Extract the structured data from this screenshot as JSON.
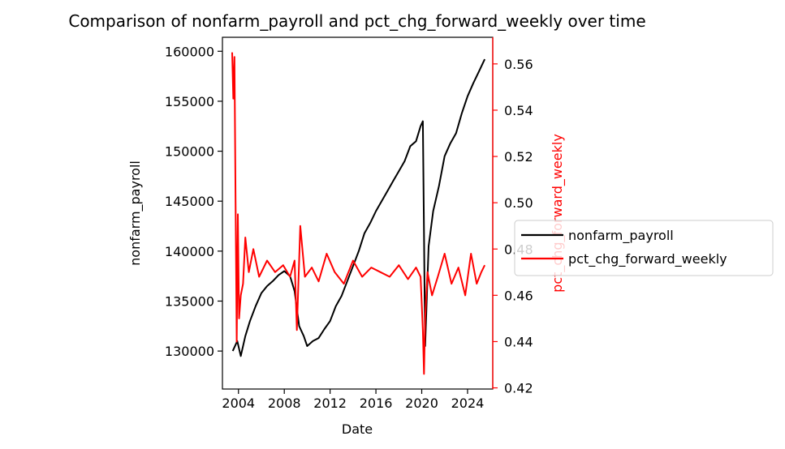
{
  "chart_data": {
    "type": "line",
    "title": "Comparison of nonfarm_payroll and pct_chg_forward_weekly over time",
    "xlabel": "Date",
    "x_tick_labels": [
      "2004",
      "2008",
      "2012",
      "2016",
      "2020",
      "2024"
    ],
    "xlim": [
      2002.6,
      2026.2
    ],
    "y_left": {
      "label": "nonfarm_payroll",
      "ticks": [
        130000,
        135000,
        140000,
        145000,
        150000,
        155000,
        160000
      ],
      "tick_labels": [
        "130000",
        "135000",
        "140000",
        "145000",
        "150000",
        "155000",
        "160000"
      ],
      "lim": [
        126200,
        161400
      ],
      "color": "#000000"
    },
    "y_right": {
      "label": "pct_chg_forward_weekly",
      "ticks": [
        0.42,
        0.44,
        0.46,
        0.48,
        0.5,
        0.52,
        0.54,
        0.56
      ],
      "tick_labels": [
        "0.42",
        "0.44",
        "0.46",
        "0.48",
        "0.50",
        "0.52",
        "0.54",
        "0.56"
      ],
      "lim": [
        0.4195,
        0.5715
      ],
      "color": "#ff0000"
    },
    "legend": {
      "placement": "center-right, outside",
      "entries": [
        "nonfarm_payroll",
        "pct_chg_forward_weekly"
      ]
    },
    "grid": false,
    "series": [
      {
        "name": "nonfarm_payroll",
        "axis": "left",
        "color": "#000000",
        "x": [
          2003.5,
          2003.9,
          2004.2,
          2004.6,
          2005.0,
          2005.5,
          2006.0,
          2006.5,
          2007.0,
          2007.5,
          2008.0,
          2008.5,
          2008.9,
          2009.3,
          2009.7,
          2010.0,
          2010.5,
          2011.0,
          2011.5,
          2012.0,
          2012.5,
          2013.0,
          2013.5,
          2014.0,
          2014.5,
          2015.0,
          2015.5,
          2016.0,
          2016.5,
          2017.0,
          2017.5,
          2018.0,
          2018.5,
          2019.0,
          2019.5,
          2019.9,
          2020.1,
          2020.3,
          2020.6,
          2021.0,
          2021.5,
          2022.0,
          2022.5,
          2023.0,
          2023.5,
          2024.0,
          2024.5,
          2025.0,
          2025.5
        ],
        "y": [
          130000,
          131000,
          129500,
          131500,
          133000,
          134500,
          135800,
          136500,
          137000,
          137600,
          138000,
          137500,
          136000,
          132500,
          131500,
          130500,
          131000,
          131300,
          132200,
          133000,
          134500,
          135500,
          137000,
          138500,
          140000,
          141800,
          142800,
          144000,
          145000,
          146000,
          147000,
          148000,
          149000,
          150500,
          151000,
          152500,
          153000,
          130500,
          140500,
          144000,
          146500,
          149500,
          150800,
          151800,
          153800,
          155500,
          156800,
          158000,
          159200
        ]
      },
      {
        "name": "pct_chg_forward_weekly",
        "axis": "right",
        "color": "#ff0000",
        "x": [
          2003.45,
          2003.55,
          2003.65,
          2003.75,
          2003.85,
          2003.95,
          2004.05,
          2004.2,
          2004.4,
          2004.6,
          2004.9,
          2005.3,
          2005.8,
          2006.5,
          2007.2,
          2007.9,
          2008.5,
          2008.9,
          2009.1,
          2009.4,
          2009.8,
          2010.4,
          2011.0,
          2011.7,
          2012.4,
          2013.2,
          2014.0,
          2014.8,
          2015.6,
          2016.4,
          2017.2,
          2018.0,
          2018.8,
          2019.5,
          2019.9,
          2020.1,
          2020.2,
          2020.3,
          2020.5,
          2020.9,
          2021.4,
          2022.0,
          2022.6,
          2023.2,
          2023.8,
          2024.3,
          2024.8,
          2025.2,
          2025.5
        ],
        "y": [
          0.565,
          0.545,
          0.563,
          0.5,
          0.44,
          0.495,
          0.45,
          0.46,
          0.465,
          0.485,
          0.47,
          0.48,
          0.468,
          0.475,
          0.47,
          0.473,
          0.468,
          0.475,
          0.445,
          0.49,
          0.468,
          0.472,
          0.466,
          0.478,
          0.47,
          0.465,
          0.475,
          0.468,
          0.472,
          0.47,
          0.468,
          0.473,
          0.467,
          0.472,
          0.468,
          0.445,
          0.426,
          0.45,
          0.47,
          0.46,
          0.468,
          0.478,
          0.465,
          0.472,
          0.46,
          0.478,
          0.465,
          0.47,
          0.473
        ]
      }
    ]
  }
}
